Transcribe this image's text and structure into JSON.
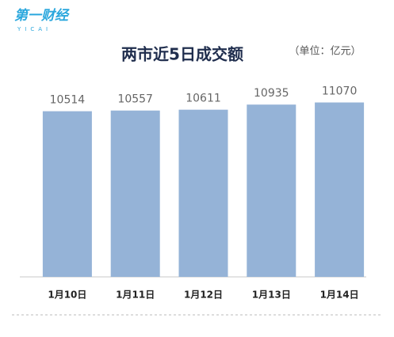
{
  "logo": {
    "text": "第一财经",
    "subtext": "YICAI"
  },
  "chart_data": {
    "type": "bar",
    "title": "两市近5日成交额",
    "unit_note": "（单位：亿元）",
    "categories": [
      "1月10日",
      "1月11日",
      "1月12日",
      "1月13日",
      "1月14日"
    ],
    "values": [
      10514,
      10557,
      10611,
      10935,
      11070
    ],
    "color": "#95b3d7",
    "ylim": [
      0,
      12000
    ]
  }
}
